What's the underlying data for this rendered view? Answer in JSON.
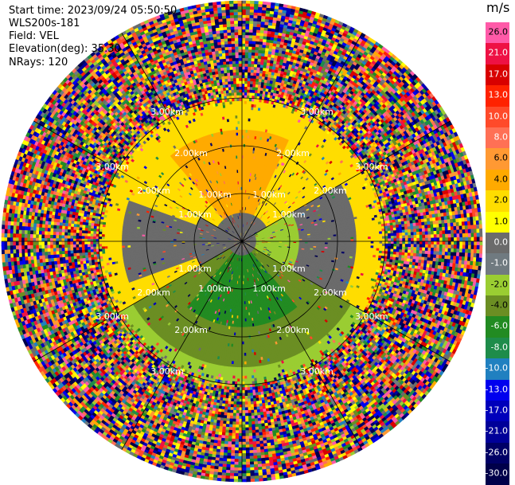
{
  "info": {
    "start_time": "Start time: 2023/09/24 05:50:50",
    "instrument": "WLS200s-181",
    "field": "Field: VEL",
    "elevation": "Elevation(deg): 35.30",
    "nrays": "NRays: 120"
  },
  "colorbar": {
    "unit": "m/s",
    "ticks": [
      "26.0",
      "21.0",
      "17.0",
      "13.0",
      "10.0",
      "8.0",
      "6.0",
      "4.0",
      "2.0",
      "1.0",
      "0.0",
      "-1.0",
      "-2.0",
      "-4.0",
      "-6.0",
      "-8.0",
      "-10.0",
      "-13.0",
      "-17.0",
      "-21.0",
      "-26.0",
      "-30.0"
    ],
    "colors": [
      "#ff5aa8",
      "#ee1144",
      "#d80000",
      "#ff2200",
      "#ff4a2a",
      "#ff7055",
      "#ff9933",
      "#ffaa00",
      "#ffdd00",
      "#ffff00",
      "#6b6b6b",
      "#707a80",
      "#9acd32",
      "#6b8e23",
      "#228b22",
      "#1e8c4a",
      "#2080c0",
      "#0000ee",
      "#0000bb",
      "#000099",
      "#000066",
      "#00004a"
    ],
    "tick_text_colors": [
      "#000",
      "#fff",
      "#fff",
      "#fff",
      "#fff",
      "#fff",
      "#000",
      "#000",
      "#000",
      "#000",
      "#fff",
      "#fff",
      "#000",
      "#000",
      "#fff",
      "#fff",
      "#fff",
      "#fff",
      "#fff",
      "#fff",
      "#fff",
      "#fff"
    ]
  },
  "chart_data": {
    "type": "heatmap",
    "title": "",
    "projection": "polar PPI",
    "field": "VEL",
    "units": "m/s",
    "elevation_deg": 35.3,
    "n_rays": 120,
    "range_rings_km": [
      1.0,
      2.0,
      3.0
    ],
    "range_ring_labels": [
      "1.00km",
      "2.00km",
      "3.00km"
    ],
    "color_range": [
      -30.0,
      26.0
    ],
    "regions": [
      {
        "area": "north, inner-mid ranges",
        "value_mps": 4.0
      },
      {
        "area": "north, outer edge",
        "value_mps": 2.0
      },
      {
        "area": "center ring",
        "value_mps": 0.0
      },
      {
        "area": "east inner",
        "value_mps": -2.0
      },
      {
        "area": "south, inner ranges",
        "value_mps": -6.0
      },
      {
        "area": "south-west, mid ranges",
        "value_mps": -4.0
      },
      {
        "area": "west, mid ranges",
        "value_mps": 0.0
      },
      {
        "area": "beyond ~2.9 km",
        "value_mps": "noise"
      }
    ]
  }
}
